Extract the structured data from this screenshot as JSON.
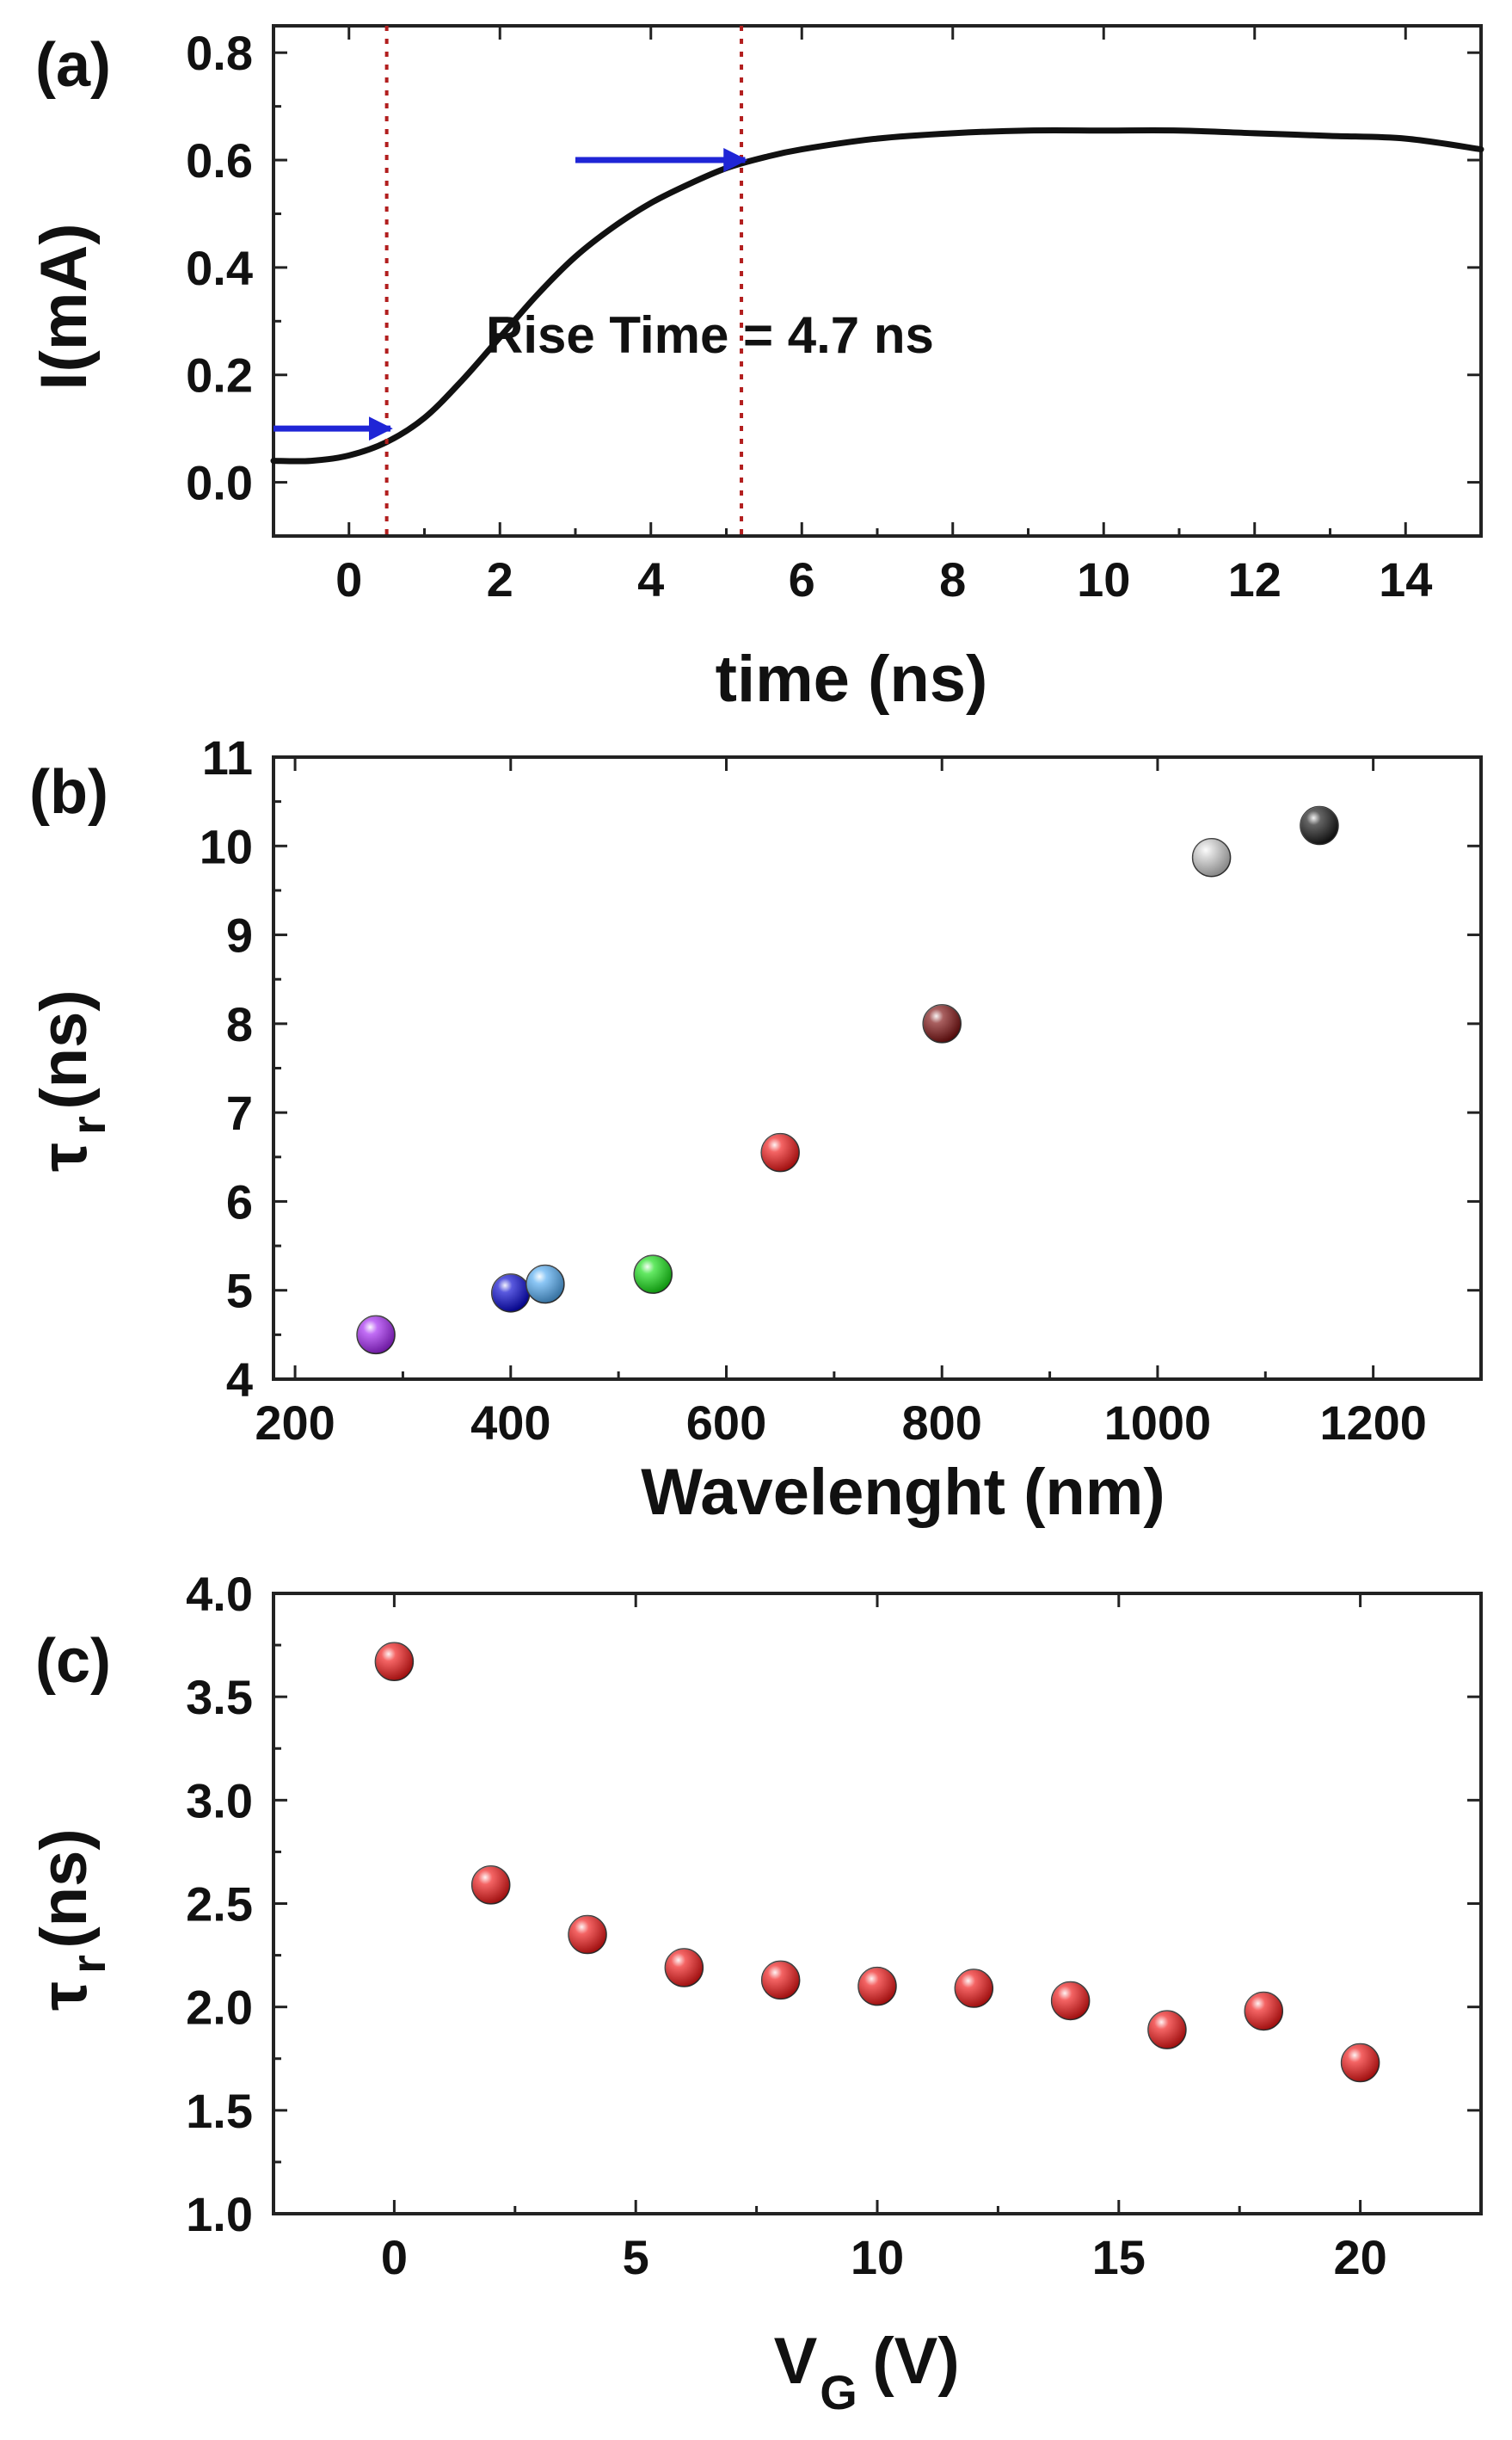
{
  "chart_data": [
    {
      "panel": "(a)",
      "type": "line",
      "xlabel": "time (ns)",
      "ylabel": "I(mA)",
      "xlim": [
        -1,
        15
      ],
      "ylim": [
        -0.1,
        0.85
      ],
      "xticks": [
        0,
        2,
        4,
        6,
        8,
        10,
        12,
        14
      ],
      "xtick_labels": [
        "0",
        "2",
        "4",
        "6",
        "8",
        "10",
        "12",
        "14"
      ],
      "yticks": [
        0.0,
        0.2,
        0.4,
        0.6,
        0.8
      ],
      "ytick_labels": [
        "0.0",
        "0.2",
        "0.4",
        "0.6",
        "0.8"
      ],
      "grid": false,
      "series": [
        {
          "name": "current",
          "x": [
            -1,
            -0.5,
            0,
            0.5,
            1,
            1.5,
            2,
            2.5,
            3,
            3.5,
            4,
            4.5,
            5,
            5.5,
            6,
            7,
            8,
            9,
            10,
            11,
            12,
            13,
            14,
            15
          ],
          "y": [
            0.04,
            0.04,
            0.05,
            0.075,
            0.12,
            0.19,
            0.27,
            0.35,
            0.42,
            0.475,
            0.52,
            0.555,
            0.585,
            0.605,
            0.62,
            0.64,
            0.65,
            0.655,
            0.655,
            0.655,
            0.65,
            0.645,
            0.64,
            0.62
          ]
        }
      ],
      "markers": [
        {
          "type": "vline",
          "x": 0.5
        },
        {
          "type": "vline",
          "x": 5.2
        }
      ],
      "arrows": [
        {
          "x_from": -1,
          "x_to": 0.55,
          "y": 0.1
        },
        {
          "x_from": 3.0,
          "x_to": 5.25,
          "y": 0.6
        }
      ],
      "annotation": "Rise Time = 4.7 ns"
    },
    {
      "panel": "(b)",
      "type": "scatter",
      "xlabel": "Wavelenght (nm)",
      "ylabel_main": "τ",
      "ylabel_sub": "r",
      "ylabel_unit": "(ns)",
      "xlim": [
        180,
        1300
      ],
      "ylim": [
        4,
        11
      ],
      "xticks": [
        200,
        400,
        600,
        800,
        1000,
        1200
      ],
      "xtick_labels": [
        "200",
        "400",
        "600",
        "800",
        "1000",
        "1200"
      ],
      "yticks": [
        4,
        5,
        6,
        7,
        8,
        9,
        10,
        11
      ],
      "ytick_labels": [
        "4",
        "5",
        "6",
        "7",
        "8",
        "9",
        "10",
        "11"
      ],
      "grid": false,
      "points": [
        {
          "x": 275,
          "y": 4.5,
          "color": "#a020f0"
        },
        {
          "x": 400,
          "y": 4.97,
          "color": "#0000cc"
        },
        {
          "x": 432,
          "y": 5.07,
          "color": "#4ea8f0"
        },
        {
          "x": 532,
          "y": 5.18,
          "color": "#11dd11"
        },
        {
          "x": 650,
          "y": 6.55,
          "color": "#ee1111"
        },
        {
          "x": 800,
          "y": 8.0,
          "color": "#7a0a0a"
        },
        {
          "x": 1050,
          "y": 9.87,
          "color": "#c8c8c8"
        },
        {
          "x": 1150,
          "y": 10.23,
          "color": "#111111"
        }
      ]
    },
    {
      "panel": "(c)",
      "type": "scatter",
      "xlabel_main": "V",
      "xlabel_sub": "G",
      "xlabel_unit": "(V)",
      "ylabel_main": "τ",
      "ylabel_sub": "r",
      "ylabel_unit": "(ns)",
      "xlim": [
        -2.5,
        22.5
      ],
      "ylim": [
        1.0,
        4.0
      ],
      "xticks": [
        0,
        5,
        10,
        15,
        20
      ],
      "xtick_labels": [
        "0",
        "5",
        "10",
        "15",
        "20"
      ],
      "yticks": [
        1.0,
        1.5,
        2.0,
        2.5,
        3.0,
        3.5,
        4.0
      ],
      "ytick_labels": [
        "1.0",
        "1.5",
        "2.0",
        "2.5",
        "3.0",
        "3.5",
        "4.0"
      ],
      "grid": false,
      "points_color": "#ee1111",
      "x": [
        0,
        2,
        4,
        6,
        8,
        10,
        12,
        14,
        16,
        18,
        20
      ],
      "y": [
        3.67,
        2.59,
        2.35,
        2.19,
        2.13,
        2.1,
        2.09,
        2.03,
        1.89,
        1.98,
        1.73
      ]
    }
  ]
}
